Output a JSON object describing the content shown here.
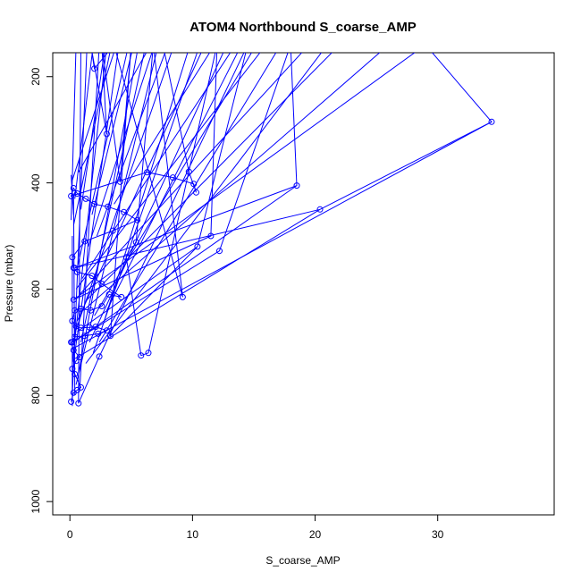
{
  "chart_data": {
    "type": "line",
    "title": "ATOM4 Northbound S_coarse_AMP",
    "xlabel": "S_coarse_AMP",
    "ylabel": "Pressure (mbar)",
    "xlim": [
      -1.4,
      39.5
    ],
    "ylim": [
      1025,
      155
    ],
    "y_reversed": true,
    "xticks": [
      0,
      10,
      20,
      30
    ],
    "yticks": [
      200,
      400,
      600,
      800,
      1000
    ],
    "grid": false,
    "series_color": "#0000ff",
    "markers": "open-circle",
    "series": [
      {
        "values": [
          [
            0.1,
            812
          ],
          [
            0.3,
            795
          ],
          [
            0.6,
            790
          ],
          [
            0.9,
            785
          ],
          [
            0.4,
            760
          ],
          [
            0.2,
            750
          ],
          [
            0.5,
            735
          ],
          [
            0.8,
            728
          ],
          [
            0.3,
            715
          ],
          [
            0.1,
            700
          ],
          [
            0.4,
            690
          ],
          [
            1.2,
            688
          ],
          [
            2.3,
            684
          ],
          [
            3.0,
            678
          ],
          [
            2.1,
            671
          ],
          [
            1.6,
            672
          ],
          [
            0.9,
            673
          ],
          [
            0.5,
            670
          ],
          [
            0.2,
            660
          ],
          [
            0.4,
            640
          ],
          [
            0.9,
            637
          ],
          [
            1.7,
            640
          ],
          [
            2.6,
            632
          ],
          [
            3.2,
            610
          ],
          [
            4.2,
            615
          ],
          [
            2.6,
            590
          ],
          [
            1.8,
            575
          ],
          [
            0.6,
            568
          ],
          [
            0.3,
            560
          ],
          [
            0.2,
            540
          ],
          [
            1.2,
            510
          ],
          [
            3.5,
            490
          ],
          [
            5.5,
            470
          ],
          [
            4.4,
            455
          ],
          [
            3.1,
            445
          ],
          [
            2.0,
            440
          ],
          [
            1.3,
            430
          ],
          [
            0.6,
            420
          ],
          [
            0.3,
            410
          ],
          [
            0.1,
            425
          ],
          [
            6.3,
            380
          ],
          [
            8.4,
            390
          ],
          [
            10.1,
            402
          ],
          [
            10.3,
            418
          ],
          [
            9.7,
            379
          ],
          [
            7.6,
            140
          ]
        ]
      },
      {
        "values": [
          [
            0.2,
            700
          ],
          [
            12.2,
            528
          ],
          [
            18.0,
            140
          ],
          [
            18.5,
            405
          ],
          [
            0.4,
            560
          ],
          [
            20.4,
            450
          ],
          [
            34.4,
            285
          ],
          [
            29.0,
            140
          ],
          [
            0.3,
            620
          ],
          [
            11.5,
            500
          ],
          [
            12.0,
            140
          ],
          [
            6.4,
            720
          ],
          [
            5.8,
            725
          ],
          [
            4.6,
            540
          ],
          [
            5.4,
            512
          ],
          [
            6.8,
            140
          ],
          [
            9.2,
            615
          ],
          [
            3.6,
            140
          ],
          [
            2.0,
            185
          ],
          [
            1.7,
            140
          ],
          [
            3.0,
            308
          ],
          [
            2.6,
            140
          ],
          [
            4.1,
            398
          ],
          [
            5.0,
            140
          ],
          [
            3.3,
            688
          ],
          [
            10.4,
            520
          ],
          [
            14.5,
            140
          ],
          [
            2.4,
            727
          ],
          [
            0.7,
            815
          ],
          [
            0.9,
            140
          ]
        ]
      }
    ],
    "fan_lines": [
      [
        [
          0.5,
          600
        ],
        [
          16.0,
          140
        ]
      ],
      [
        [
          0.8,
          610
        ],
        [
          19.5,
          140
        ]
      ],
      [
        [
          1.0,
          580
        ],
        [
          13.5,
          140
        ]
      ],
      [
        [
          1.4,
          620
        ],
        [
          22.0,
          140
        ]
      ],
      [
        [
          0.6,
          660
        ],
        [
          11.0,
          140
        ]
      ],
      [
        [
          1.1,
          640
        ],
        [
          26.0,
          140
        ]
      ],
      [
        [
          0.3,
          690
        ],
        [
          8.5,
          140
        ]
      ],
      [
        [
          0.9,
          700
        ],
        [
          6.2,
          140
        ]
      ],
      [
        [
          2.0,
          650
        ],
        [
          15.2,
          140
        ]
      ],
      [
        [
          0.4,
          720
        ],
        [
          4.0,
          140
        ]
      ],
      [
        [
          1.6,
          700
        ],
        [
          12.8,
          140
        ]
      ],
      [
        [
          0.2,
          740
        ],
        [
          3.0,
          140
        ]
      ],
      [
        [
          2.8,
          660
        ],
        [
          9.8,
          140
        ]
      ],
      [
        [
          0.7,
          760
        ],
        [
          5.6,
          140
        ]
      ],
      [
        [
          1.3,
          740
        ],
        [
          21.0,
          140
        ]
      ],
      [
        [
          0.5,
          780
        ],
        [
          7.2,
          140
        ]
      ],
      [
        [
          2.4,
          700
        ],
        [
          17.2,
          140
        ]
      ],
      [
        [
          1.9,
          720
        ],
        [
          10.6,
          140
        ]
      ],
      [
        [
          3.0,
          640
        ],
        [
          14.0,
          140
        ]
      ],
      [
        [
          0.8,
          790
        ],
        [
          2.4,
          140
        ]
      ],
      [
        [
          0.2,
          800
        ],
        [
          1.4,
          140
        ]
      ],
      [
        [
          0.6,
          560
        ],
        [
          4.8,
          140
        ]
      ],
      [
        [
          1.5,
          520
        ],
        [
          6.9,
          140
        ]
      ],
      [
        [
          0.3,
          480
        ],
        [
          3.4,
          140
        ]
      ],
      [
        [
          2.2,
          500
        ],
        [
          8.0,
          140
        ]
      ],
      [
        [
          0.9,
          450
        ],
        [
          2.9,
          140
        ]
      ],
      [
        [
          0.1,
          470
        ],
        [
          0.5,
          140
        ]
      ],
      [
        [
          0.4,
          430
        ],
        [
          1.9,
          140
        ]
      ],
      [
        [
          1.8,
          460
        ],
        [
          5.2,
          140
        ]
      ],
      [
        [
          3.6,
          440
        ],
        [
          11.8,
          140
        ]
      ],
      [
        [
          0.2,
          395
        ],
        [
          3.8,
          140
        ]
      ],
      [
        [
          0.7,
          380
        ],
        [
          6.6,
          140
        ]
      ],
      [
        [
          0.3,
          460
        ],
        [
          0.1,
          385
        ]
      ],
      [
        [
          0.2,
          820
        ],
        [
          0.2,
          500
        ]
      ],
      [
        [
          0.4,
          800
        ],
        [
          0.3,
          420
        ]
      ],
      [
        [
          18.5,
          405
        ],
        [
          0.3,
          700
        ]
      ],
      [
        [
          34.4,
          285
        ],
        [
          0.4,
          710
        ]
      ],
      [
        [
          20.4,
          450
        ],
        [
          0.5,
          730
        ]
      ],
      [
        [
          10.4,
          520
        ],
        [
          0.6,
          680
        ]
      ]
    ]
  }
}
